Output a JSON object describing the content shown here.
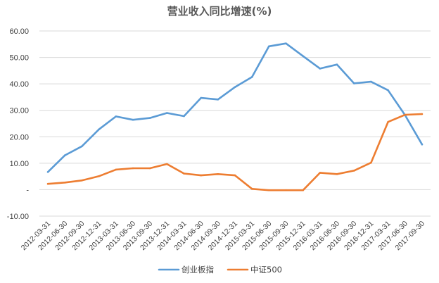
{
  "chart_data": {
    "type": "line",
    "title": "营业收入同比增速(%)",
    "xlabel": "",
    "ylabel": "",
    "ylim": [
      -10,
      60
    ],
    "yticks": [
      60,
      50,
      40,
      30,
      20,
      10,
      0,
      -10
    ],
    "ytick_labels": [
      "60.00",
      "50.00",
      "40.00",
      "30.00",
      "20.00",
      "10.00",
      "-",
      "-10.00"
    ],
    "grid": true,
    "legend_position": "bottom",
    "categories": [
      "2012-03-31",
      "2012-06-30",
      "2012-09-30",
      "2012-12-31",
      "2013-03-31",
      "2013-06-30",
      "2013-09-30",
      "2013-12-31",
      "2014-03-31",
      "2014-06-30",
      "2014-09-30",
      "2014-12-31",
      "2015-03-31",
      "2015-06-30",
      "2015-09-30",
      "2015-12-31",
      "2016-03-31",
      "2016-06-30",
      "2016-09-30",
      "2016-12-31",
      "2017-03-31",
      "2017-06-30",
      "2017-09-30"
    ],
    "series": [
      {
        "name": "创业板指",
        "color": "#5b9bd5",
        "values": [
          6.7,
          13.0,
          16.4,
          22.8,
          27.7,
          26.4,
          27.1,
          29.0,
          27.8,
          34.7,
          34.1,
          38.8,
          42.6,
          54.2,
          55.3,
          50.5,
          45.8,
          47.3,
          40.2,
          40.8,
          37.6,
          28.2,
          17.1
        ]
      },
      {
        "name": "中证500",
        "color": "#ed7d31",
        "values": [
          2.2,
          2.7,
          3.5,
          5.1,
          7.6,
          8.1,
          8.1,
          9.7,
          6.1,
          5.4,
          5.9,
          5.4,
          0.3,
          -0.2,
          -0.2,
          -0.2,
          6.4,
          5.9,
          7.2,
          10.2,
          25.6,
          28.3,
          28.6
        ]
      }
    ]
  }
}
